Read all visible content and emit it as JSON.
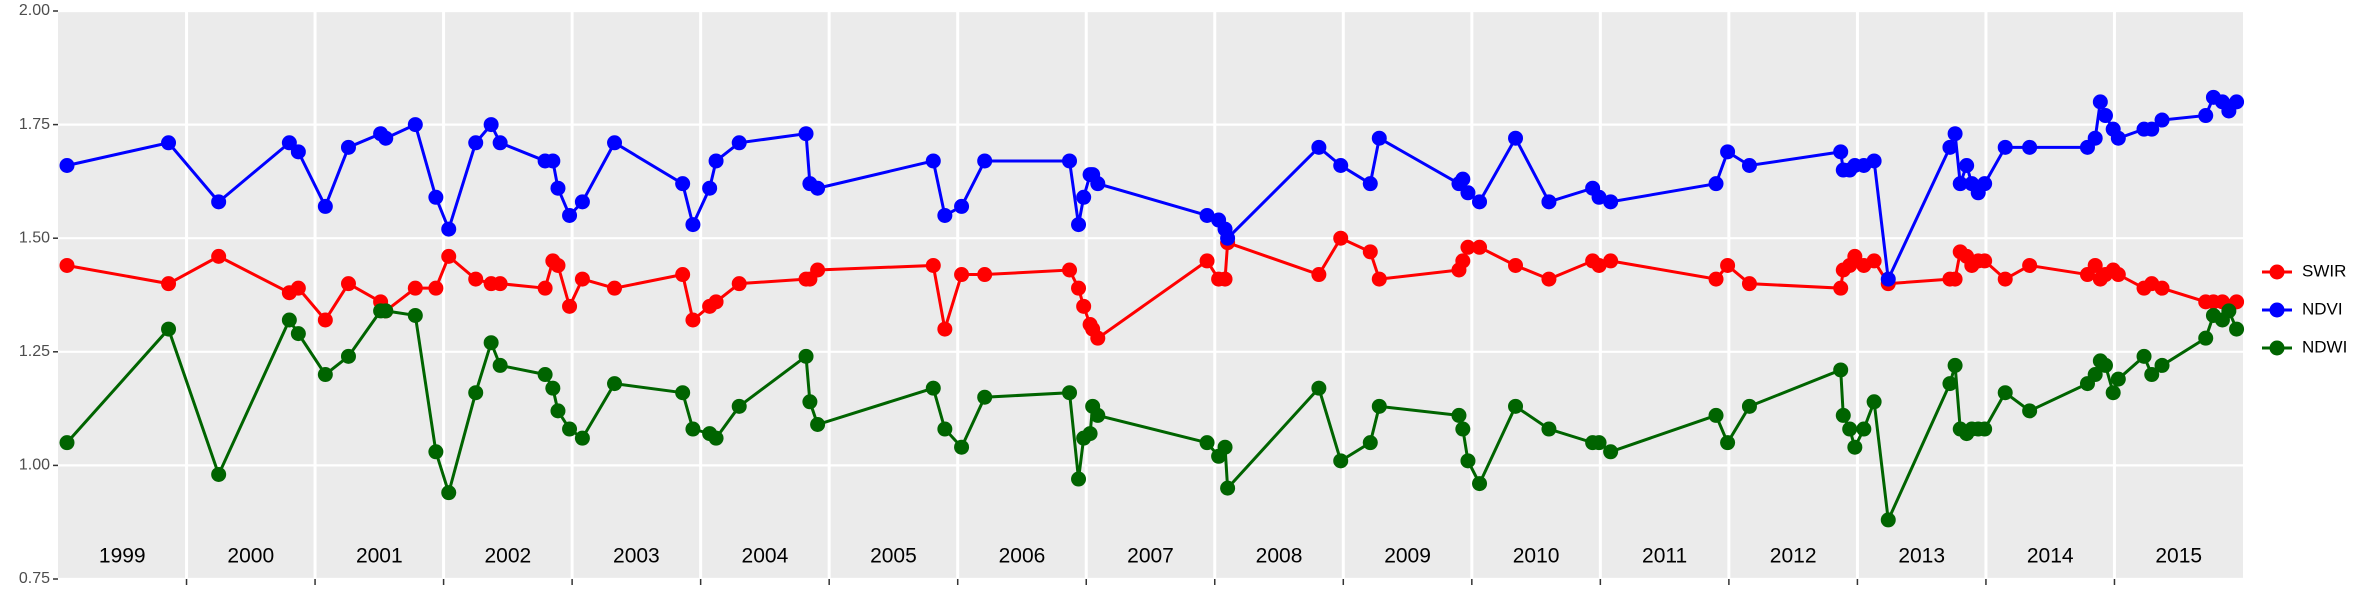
{
  "chart_data": {
    "type": "line",
    "x": [
      1999.07,
      1999.86,
      2000.25,
      2000.8,
      2000.87,
      2001.08,
      2001.26,
      2001.51,
      2001.55,
      2001.78,
      2001.94,
      2002.04,
      2002.25,
      2002.37,
      2002.44,
      2002.79,
      2002.85,
      2002.89,
      2002.98,
      2003.08,
      2003.33,
      2003.86,
      2003.94,
      2004.07,
      2004.12,
      2004.3,
      2004.82,
      2004.85,
      2004.91,
      2005.81,
      2005.9,
      2006.03,
      2006.21,
      2006.87,
      2006.94,
      2006.98,
      2007.03,
      2007.05,
      2007.09,
      2007.94,
      2008.03,
      2008.08,
      2008.1,
      2008.81,
      2008.98,
      2009.21,
      2009.28,
      2009.9,
      2009.93,
      2009.97,
      2010.06,
      2010.34,
      2010.6,
      2010.94,
      2010.99,
      2011.08,
      2011.9,
      2011.99,
      2012.16,
      2012.87,
      2012.89,
      2012.94,
      2012.98,
      2013.05,
      2013.13,
      2013.24,
      2013.72,
      2013.76,
      2013.8,
      2013.85,
      2013.89,
      2013.94,
      2013.99,
      2014.15,
      2014.34,
      2014.79,
      2014.85,
      2014.89,
      2014.93,
      2014.99,
      2015.03,
      2015.23,
      2015.29,
      2015.37,
      2015.71,
      2015.77,
      2015.84,
      2015.89,
      2015.95
    ],
    "series": [
      {
        "name": "SWIR",
        "color": "#ff0000",
        "values": [
          1.44,
          1.4,
          1.46,
          1.38,
          1.39,
          1.32,
          1.4,
          1.36,
          1.34,
          1.39,
          1.39,
          1.46,
          1.41,
          1.4,
          1.4,
          1.39,
          1.45,
          1.44,
          1.35,
          1.41,
          1.39,
          1.42,
          1.32,
          1.35,
          1.36,
          1.4,
          1.41,
          1.41,
          1.43,
          1.44,
          1.3,
          1.42,
          1.42,
          1.43,
          1.39,
          1.35,
          1.31,
          1.3,
          1.28,
          1.45,
          1.41,
          1.41,
          1.49,
          1.42,
          1.5,
          1.47,
          1.41,
          1.43,
          1.45,
          1.48,
          1.48,
          1.44,
          1.41,
          1.45,
          1.44,
          1.45,
          1.41,
          1.44,
          1.4,
          1.39,
          1.43,
          1.44,
          1.46,
          1.44,
          1.45,
          1.4,
          1.41,
          1.41,
          1.47,
          1.46,
          1.44,
          1.45,
          1.45,
          1.41,
          1.44,
          1.42,
          1.44,
          1.41,
          1.42,
          1.43,
          1.42,
          1.39,
          1.4,
          1.39,
          1.36,
          1.36,
          1.36,
          1.35,
          1.36
        ]
      },
      {
        "name": "NDVI",
        "color": "#0000ff",
        "values": [
          1.66,
          1.71,
          1.58,
          1.71,
          1.69,
          1.57,
          1.7,
          1.73,
          1.72,
          1.75,
          1.59,
          1.52,
          1.71,
          1.75,
          1.71,
          1.67,
          1.67,
          1.61,
          1.55,
          1.58,
          1.71,
          1.62,
          1.53,
          1.61,
          1.67,
          1.71,
          1.73,
          1.62,
          1.61,
          1.67,
          1.55,
          1.57,
          1.67,
          1.67,
          1.53,
          1.59,
          1.64,
          1.64,
          1.62,
          1.55,
          1.54,
          1.52,
          1.5,
          1.7,
          1.66,
          1.62,
          1.72,
          1.62,
          1.63,
          1.6,
          1.58,
          1.72,
          1.58,
          1.61,
          1.59,
          1.58,
          1.62,
          1.69,
          1.66,
          1.69,
          1.65,
          1.65,
          1.66,
          1.66,
          1.67,
          1.41,
          1.7,
          1.73,
          1.62,
          1.66,
          1.62,
          1.6,
          1.62,
          1.7,
          1.7,
          1.7,
          1.72,
          1.8,
          1.77,
          1.74,
          1.72,
          1.74,
          1.74,
          1.76,
          1.77,
          1.81,
          1.8,
          1.78,
          1.8
        ]
      },
      {
        "name": "NDWI",
        "color": "#006400",
        "values": [
          1.05,
          1.3,
          0.98,
          1.32,
          1.29,
          1.2,
          1.24,
          1.34,
          1.34,
          1.33,
          1.03,
          0.94,
          1.16,
          1.27,
          1.22,
          1.2,
          1.17,
          1.12,
          1.08,
          1.06,
          1.18,
          1.16,
          1.08,
          1.07,
          1.06,
          1.13,
          1.24,
          1.14,
          1.09,
          1.17,
          1.08,
          1.04,
          1.15,
          1.16,
          0.97,
          1.06,
          1.07,
          1.13,
          1.11,
          1.05,
          1.02,
          1.04,
          0.95,
          1.17,
          1.01,
          1.05,
          1.13,
          1.11,
          1.08,
          1.01,
          0.96,
          1.13,
          1.08,
          1.05,
          1.05,
          1.03,
          1.11,
          1.05,
          1.13,
          1.21,
          1.11,
          1.08,
          1.04,
          1.08,
          1.14,
          0.88,
          1.18,
          1.22,
          1.08,
          1.07,
          1.08,
          1.08,
          1.08,
          1.16,
          1.12,
          1.18,
          1.2,
          1.23,
          1.22,
          1.16,
          1.19,
          1.24,
          1.2,
          1.22,
          1.28,
          1.33,
          1.32,
          1.34,
          1.3
        ]
      }
    ],
    "xlim": [
      1999,
      2016
    ],
    "xticks": [
      2000,
      2001,
      2002,
      2003,
      2004,
      2005,
      2006,
      2007,
      2008,
      2009,
      2010,
      2011,
      2012,
      2013,
      2014,
      2015
    ],
    "x_labels": [
      {
        "value": 1999.5,
        "label": "1999"
      },
      {
        "value": 2000.5,
        "label": "2000"
      },
      {
        "value": 2001.5,
        "label": "2001"
      },
      {
        "value": 2002.5,
        "label": "2002"
      },
      {
        "value": 2003.5,
        "label": "2003"
      },
      {
        "value": 2004.5,
        "label": "2004"
      },
      {
        "value": 2005.5,
        "label": "2005"
      },
      {
        "value": 2006.5,
        "label": "2006"
      },
      {
        "value": 2007.5,
        "label": "2007"
      },
      {
        "value": 2008.5,
        "label": "2008"
      },
      {
        "value": 2009.5,
        "label": "2009"
      },
      {
        "value": 2010.5,
        "label": "2010"
      },
      {
        "value": 2011.5,
        "label": "2011"
      },
      {
        "value": 2012.5,
        "label": "2012"
      },
      {
        "value": 2013.5,
        "label": "2013"
      },
      {
        "value": 2014.5,
        "label": "2014"
      },
      {
        "value": 2015.5,
        "label": "2015"
      }
    ],
    "ylim": [
      0.75,
      2.0
    ],
    "yticks": [
      {
        "value": 0.75,
        "label": "0.75"
      },
      {
        "value": 1.0,
        "label": "1.00"
      },
      {
        "value": 1.25,
        "label": "1.25"
      },
      {
        "value": 1.5,
        "label": "1.50"
      },
      {
        "value": 1.75,
        "label": "1.75"
      },
      {
        "value": 2.0,
        "label": "2.00"
      }
    ],
    "grid": true,
    "legend": "right"
  }
}
